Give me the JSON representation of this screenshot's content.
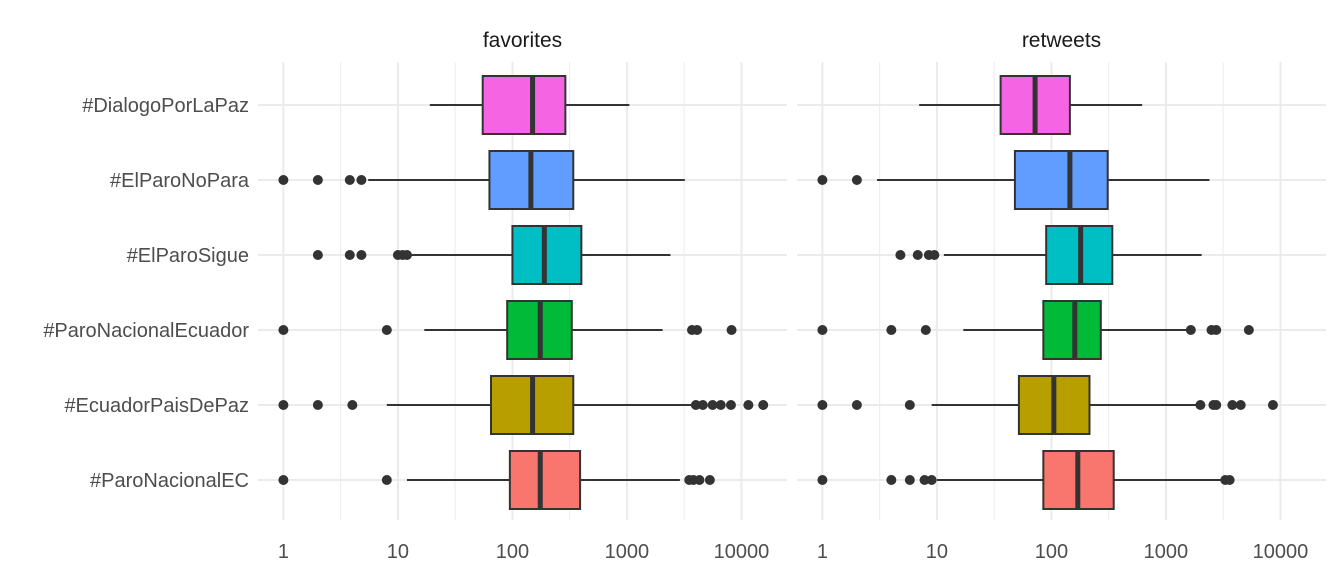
{
  "chart_data": {
    "type": "boxplot",
    "x_scale": "log10",
    "xlim": [
      0.6,
      25000
    ],
    "x_ticks": [
      1,
      10,
      100,
      1000,
      10000
    ],
    "x_tick_labels": [
      "1",
      "10",
      "100",
      "1000",
      "10000"
    ],
    "categories": [
      "#DialogoPorLaPaz",
      "#ElParoNoPara",
      "#ElParoSigue",
      "#ParoNacionalEcuador",
      "#EcuadorPaisDePaz",
      "#ParoNacionalEC"
    ],
    "colors": {
      "#DialogoPorLaPaz": "#F564E3",
      "#ElParoNoPara": "#619CFF",
      "#ElParoSigue": "#00BFC4",
      "#ParoNacionalEcuador": "#00BA38",
      "#EcuadorPaisDePaz": "#B79F00",
      "#ParoNacionalEC": "#F8766D"
    },
    "grid": true,
    "legend": "none",
    "panels": [
      {
        "title": "favorites",
        "boxes": [
          {
            "category": "#DialogoPorLaPaz",
            "whisker_low": 19,
            "q1": 55,
            "median": 150,
            "q3": 290,
            "whisker_high": 1050,
            "outliers": []
          },
          {
            "category": "#ElParoNoPara",
            "whisker_low": 5.5,
            "q1": 63,
            "median": 145,
            "q3": 340,
            "whisker_high": 3200,
            "outliers": [
              1,
              2,
              3.8,
              4.8
            ]
          },
          {
            "category": "#ElParoSigue",
            "whisker_low": 12.5,
            "q1": 100,
            "median": 190,
            "q3": 400,
            "whisker_high": 2400,
            "outliers": [
              2,
              3.8,
              4.8,
              10,
              11,
              12
            ]
          },
          {
            "category": "#ParoNacionalEcuador",
            "whisker_low": 17,
            "q1": 90,
            "median": 175,
            "q3": 330,
            "whisker_high": 2050,
            "outliers": [
              1,
              8,
              3700,
              4100,
              8200
            ]
          },
          {
            "category": "#EcuadorPaisDePaz",
            "whisker_low": 8,
            "q1": 65,
            "median": 150,
            "q3": 340,
            "whisker_high": 3900,
            "outliers": [
              1,
              2,
              4,
              4000,
              4600,
              5600,
              6600,
              8100,
              11500,
              15500
            ]
          },
          {
            "category": "#ParoNacionalEC",
            "whisker_low": 12,
            "q1": 95,
            "median": 175,
            "q3": 390,
            "whisker_high": 2900,
            "outliers": [
              1,
              8,
              3500,
              3800,
              4300,
              5300
            ]
          }
        ]
      },
      {
        "title": "retweets",
        "boxes": [
          {
            "category": "#DialogoPorLaPaz",
            "whisker_low": 7,
            "q1": 36,
            "median": 72,
            "q3": 145,
            "whisker_high": 620,
            "outliers": []
          },
          {
            "category": "#ElParoNoPara",
            "whisker_low": 3,
            "q1": 48,
            "median": 145,
            "q3": 310,
            "whisker_high": 2400,
            "outliers": [
              1,
              2
            ]
          },
          {
            "category": "#ElParoSigue",
            "whisker_low": 11.5,
            "q1": 90,
            "median": 180,
            "q3": 340,
            "whisker_high": 2050,
            "outliers": [
              4.8,
              6.8,
              8.5,
              9.5
            ]
          },
          {
            "category": "#ParoNacionalEcuador",
            "whisker_low": 17,
            "q1": 85,
            "median": 160,
            "q3": 270,
            "whisker_high": 1600,
            "outliers": [
              1,
              4,
              8,
              1650,
              2500,
              2750,
              5300
            ]
          },
          {
            "category": "#EcuadorPaisDePaz",
            "whisker_low": 9,
            "q1": 52,
            "median": 105,
            "q3": 215,
            "whisker_high": 1950,
            "outliers": [
              1,
              2,
              5.8,
              2000,
              2600,
              2750,
              3800,
              4500,
              8600
            ]
          },
          {
            "category": "#ParoNacionalEC",
            "whisker_low": 10,
            "q1": 85,
            "median": 170,
            "q3": 350,
            "whisker_high": 3250,
            "outliers": [
              1,
              4,
              5.8,
              7.8,
              9,
              3300,
              3600
            ]
          }
        ]
      }
    ]
  }
}
